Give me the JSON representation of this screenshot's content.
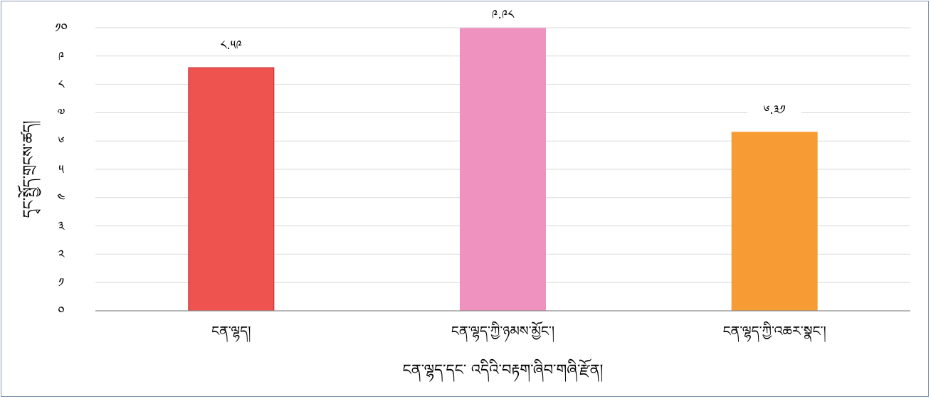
{
  "chart_data": {
    "type": "bar",
    "categories": [
      "ངན་ལྷད།",
      "ངན་ལྷད་ཀྱི་ཉམས་མྱོང་།",
      "ངན་ལྷད་ཀྱི་འཆར་སྣང་།"
    ],
    "values": [
      8.59,
      9.98,
      6.31
    ],
    "data_labels": [
      "༨.༥༩",
      "༩.༩༨",
      "༦.༣༡"
    ],
    "bar_colors": [
      "#ef5350",
      "#f092bf",
      "#f79b35"
    ],
    "bar_outline_colors": [
      "#c0272d",
      "#f092bf",
      "#f79b35"
    ],
    "ylim": [
      0,
      10
    ],
    "yticks": [
      0,
      1,
      2,
      3,
      4,
      5,
      6,
      7,
      8,
      9,
      10
    ],
    "ytick_labels": [
      "༠",
      "༡",
      "༢",
      "༣",
      "༤",
      "༥",
      "༦",
      "༧",
      "༨",
      "༩",
      "༡༠"
    ],
    "xlabel": "ངན་ལྷད་དང་  འདིའི་བརྟག་ཞིབ་གཞི་རྫོན།",
    "ylabel": "དྭང་སྤྱོད་གྲངས་ཚད།",
    "grid": true,
    "legend": "none"
  }
}
